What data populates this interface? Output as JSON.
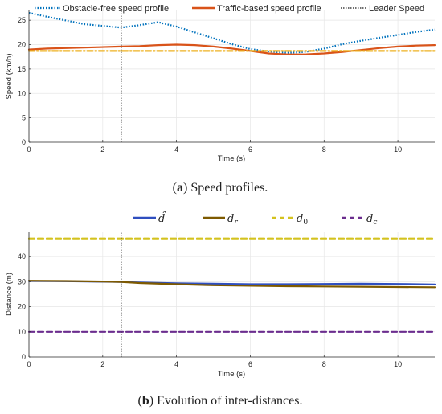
{
  "chart_data": [
    {
      "type": "line",
      "xlabel": "Time (s)",
      "ylabel": "Speed (km/h)",
      "xlim": [
        0,
        11
      ],
      "ylim": [
        0,
        27
      ],
      "xticks": [
        0,
        2,
        4,
        6,
        8,
        10
      ],
      "yticks": [
        0,
        5,
        10,
        15,
        20,
        25
      ],
      "grid": true,
      "legend_position": "top",
      "caption_label": "(a)",
      "caption_text": "Speed profiles.",
      "series": [
        {
          "name": "Obstacle-free speed profile",
          "color": "#0072BD",
          "style": "dotted",
          "x": [
            0,
            0.5,
            1.5,
            2.5,
            3.0,
            3.5,
            4.0,
            4.5,
            5.0,
            5.5,
            6.0,
            6.5,
            7.0,
            7.5,
            8.0,
            8.5,
            9.0,
            9.5,
            10.0,
            10.5,
            11.0
          ],
          "y": [
            26.5,
            25.7,
            24.2,
            23.5,
            24.0,
            24.6,
            23.7,
            22.5,
            21.3,
            20.1,
            19.1,
            18.6,
            18.3,
            18.5,
            19.2,
            20.1,
            20.8,
            21.4,
            22.0,
            22.6,
            23.1
          ]
        },
        {
          "name": "Traffic-based speed profile",
          "color": "#D95319",
          "style": "solid",
          "x": [
            0,
            0.5,
            1.5,
            2.5,
            3.0,
            3.5,
            4.0,
            4.5,
            5.0,
            5.5,
            6.0,
            6.5,
            7.0,
            7.5,
            8.0,
            8.5,
            9.0,
            9.5,
            10.0,
            10.5,
            11.0
          ],
          "y": [
            19.0,
            19.2,
            19.4,
            19.6,
            19.7,
            19.9,
            20.0,
            19.9,
            19.6,
            19.2,
            18.7,
            18.2,
            18.0,
            18.0,
            18.2,
            18.5,
            18.9,
            19.3,
            19.6,
            19.8,
            19.9
          ]
        },
        {
          "name": "Leader Speed",
          "color": "#404040",
          "style": "dotted",
          "x": [
            2.5,
            2.5
          ],
          "y": [
            0,
            27
          ]
        },
        {
          "name": "",
          "color": "#EDB120",
          "style": "dashdot",
          "x": [
            0,
            11
          ],
          "y": [
            18.7,
            18.7
          ]
        }
      ]
    },
    {
      "type": "line",
      "xlabel": "Time (s)",
      "ylabel": "Distance (m)",
      "xlim": [
        0,
        11
      ],
      "ylim": [
        0,
        50
      ],
      "xticks": [
        0,
        2,
        4,
        6,
        8,
        10
      ],
      "yticks": [
        0,
        10,
        20,
        30,
        40
      ],
      "grid": true,
      "legend_position": "top",
      "caption_label": "(b)",
      "caption_text": "Evolution of inter-distances.",
      "series": [
        {
          "name": "d̂",
          "color": "#2F4FBF",
          "style": "solid",
          "x": [
            0,
            1,
            2,
            2.5,
            3,
            4,
            5,
            6,
            7,
            8,
            9,
            10,
            11
          ],
          "y": [
            30.3,
            30.2,
            30.0,
            29.9,
            29.7,
            29.4,
            29.2,
            29.0,
            29.0,
            29.1,
            29.2,
            29.1,
            28.9
          ]
        },
        {
          "name": "d_r",
          "color": "#7E5A00",
          "style": "solid",
          "x": [
            0,
            1,
            2,
            2.5,
            3,
            4,
            5,
            6,
            7,
            8,
            9,
            10,
            11
          ],
          "y": [
            30.4,
            30.3,
            30.1,
            29.9,
            29.5,
            29.0,
            28.6,
            28.4,
            28.2,
            28.1,
            28.0,
            27.9,
            27.8
          ]
        },
        {
          "name": "d_0",
          "color": "#D4C21E",
          "style": "dashed",
          "x": [
            0,
            11
          ],
          "y": [
            47.2,
            47.2
          ]
        },
        {
          "name": "d_c",
          "color": "#6B2D8E",
          "style": "dashed",
          "x": [
            0,
            11
          ],
          "y": [
            10.0,
            10.0
          ]
        },
        {
          "name": "",
          "color": "#404040",
          "style": "dotted",
          "x": [
            2.5,
            2.5
          ],
          "y": [
            0,
            50
          ]
        }
      ]
    }
  ]
}
